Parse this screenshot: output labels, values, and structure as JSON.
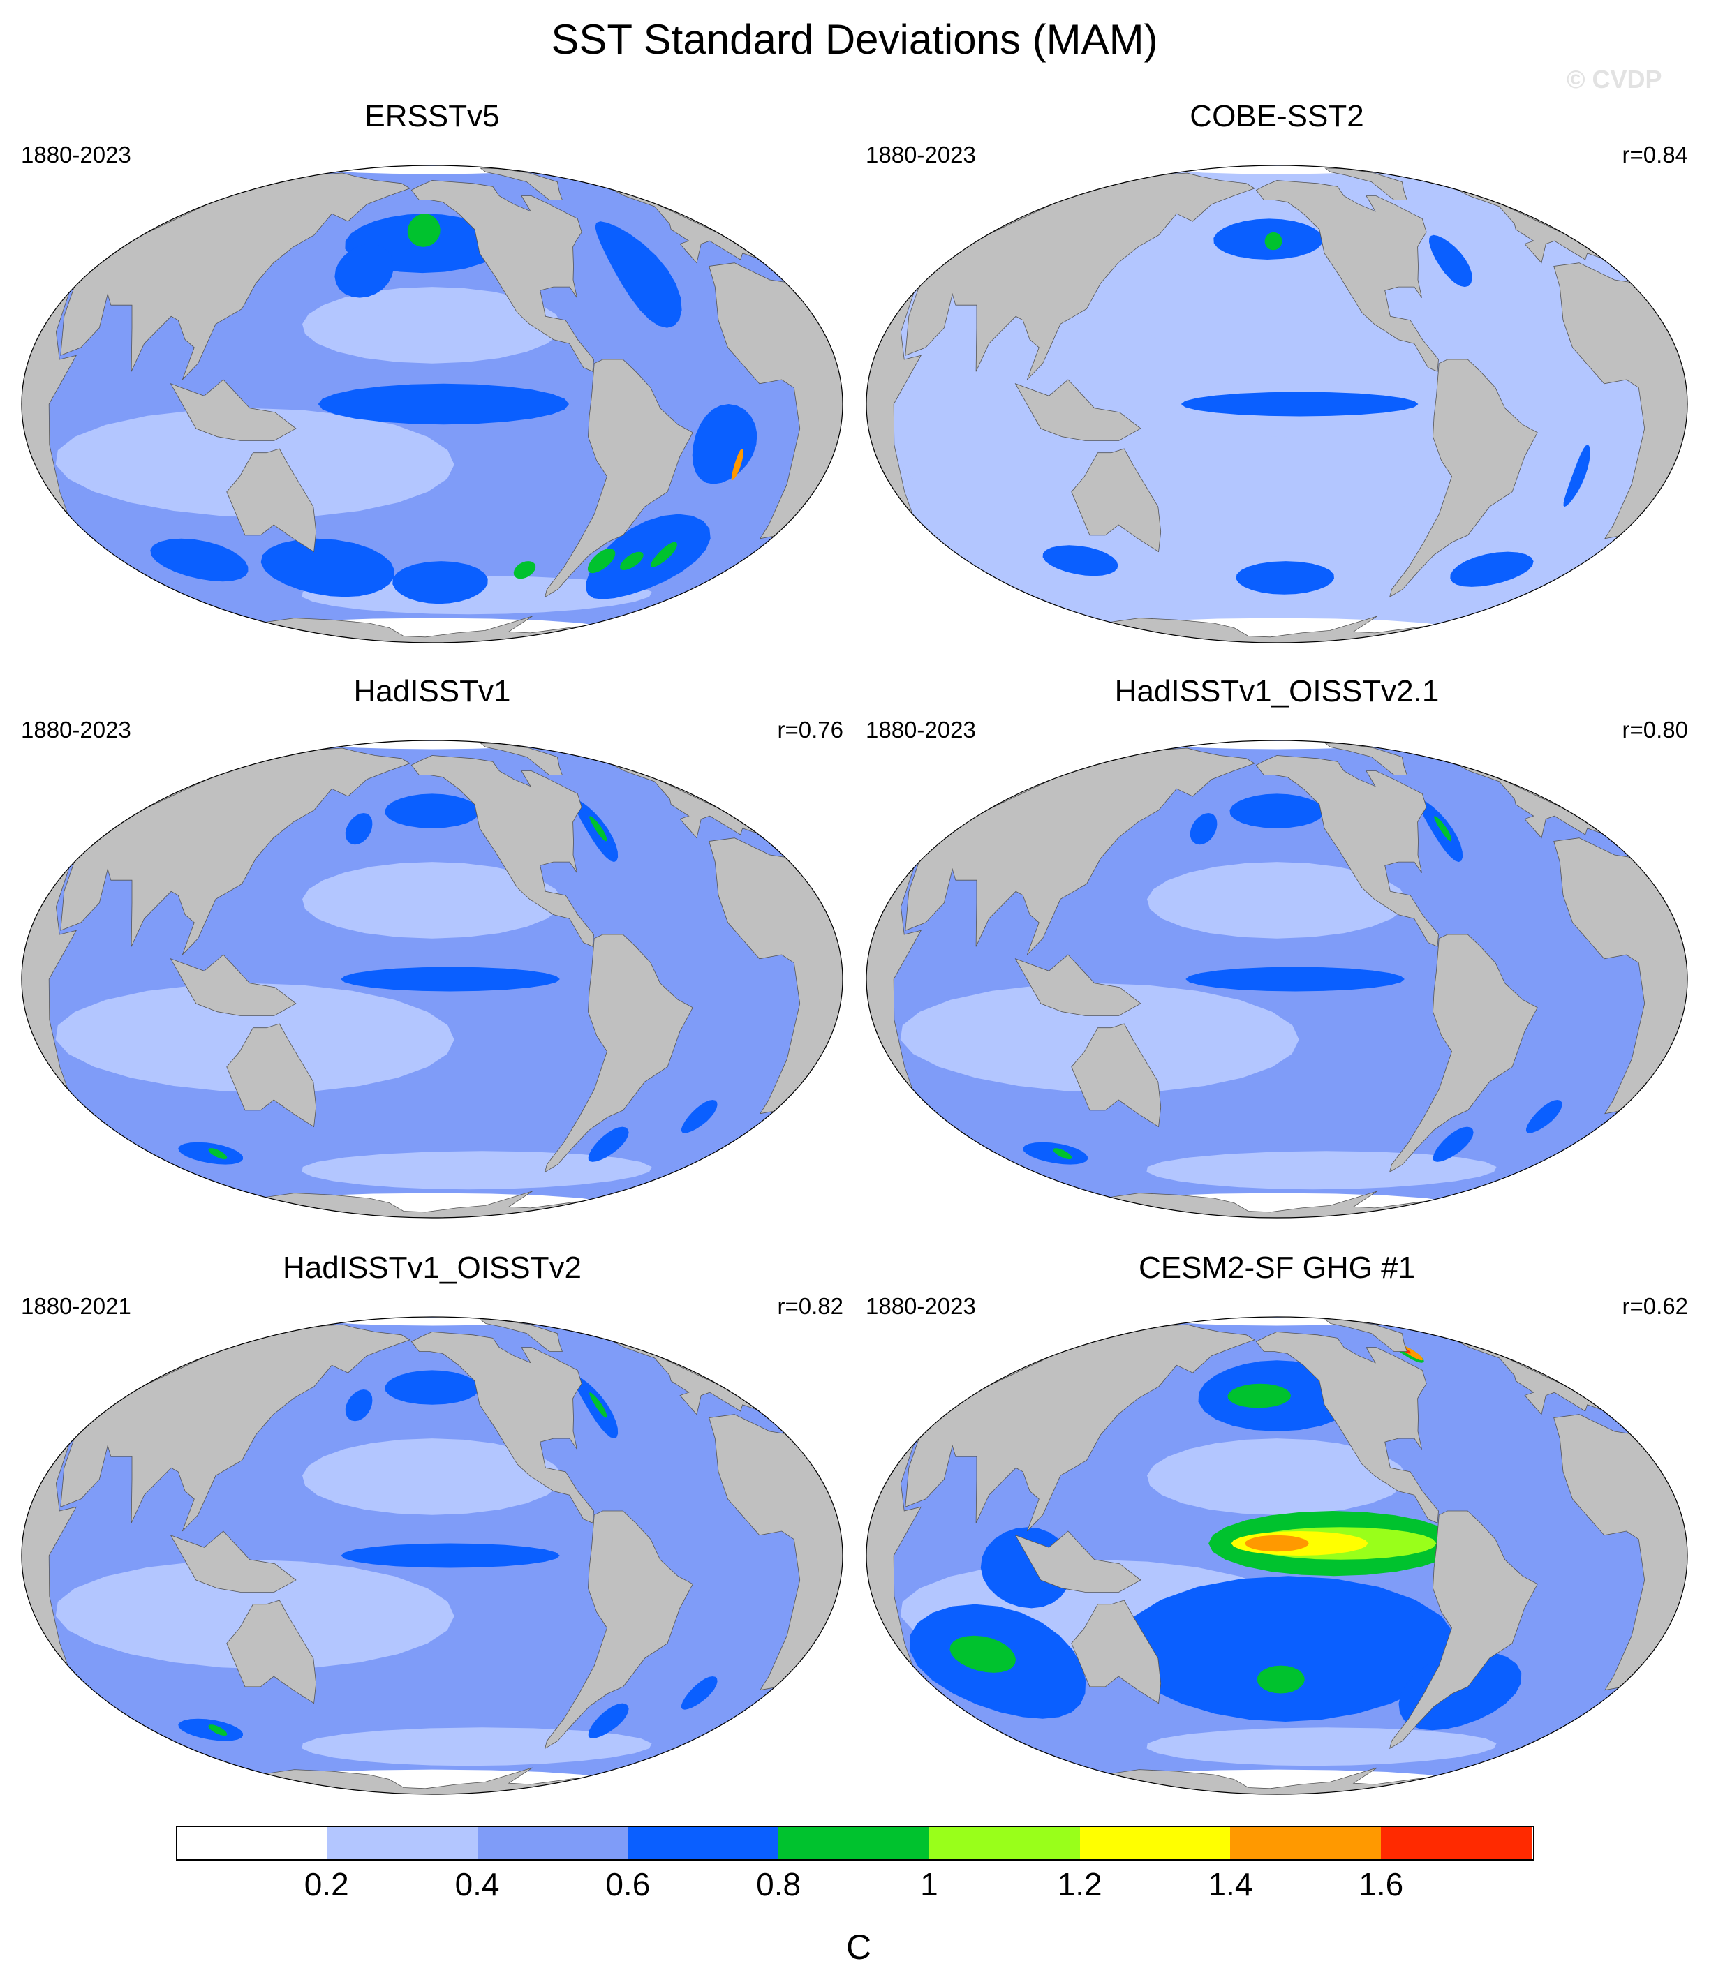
{
  "title": "SST Standard Deviations (MAM)",
  "watermark": "© CVDP",
  "panels": [
    {
      "name": "ERSSTv5",
      "years": "1880-2023",
      "corr": "",
      "variant": "ersst"
    },
    {
      "name": "COBE-SST2",
      "years": "1880-2023",
      "corr": "r=0.84",
      "variant": "cobe"
    },
    {
      "name": "HadISSTv1",
      "years": "1880-2023",
      "corr": "r=0.76",
      "variant": "had"
    },
    {
      "name": "HadISSTv1_OISSTv2.1",
      "years": "1880-2023",
      "corr": "r=0.80",
      "variant": "had"
    },
    {
      "name": "HadISSTv1_OISSTv2",
      "years": "1880-2021",
      "corr": "r=0.82",
      "variant": "had"
    },
    {
      "name": "CESM2-SF GHG #1",
      "years": "1880-2023",
      "corr": "r=0.62",
      "variant": "cesm"
    }
  ],
  "colorbar": {
    "unit": "C",
    "ticks": [
      "0.2",
      "0.4",
      "0.6",
      "0.8",
      "1",
      "1.2",
      "1.4",
      "1.6"
    ],
    "levels": [
      0.2,
      0.4,
      0.6,
      0.8,
      1.0,
      1.2,
      1.4,
      1.6
    ],
    "colors": [
      "#ffffff",
      "#b3c6ff",
      "#7f9cf8",
      "#0a5fff",
      "#00c22e",
      "#99ff1a",
      "#ffff00",
      "#ff9900",
      "#ff2a00"
    ]
  },
  "land_color": "#c0c0c0"
}
